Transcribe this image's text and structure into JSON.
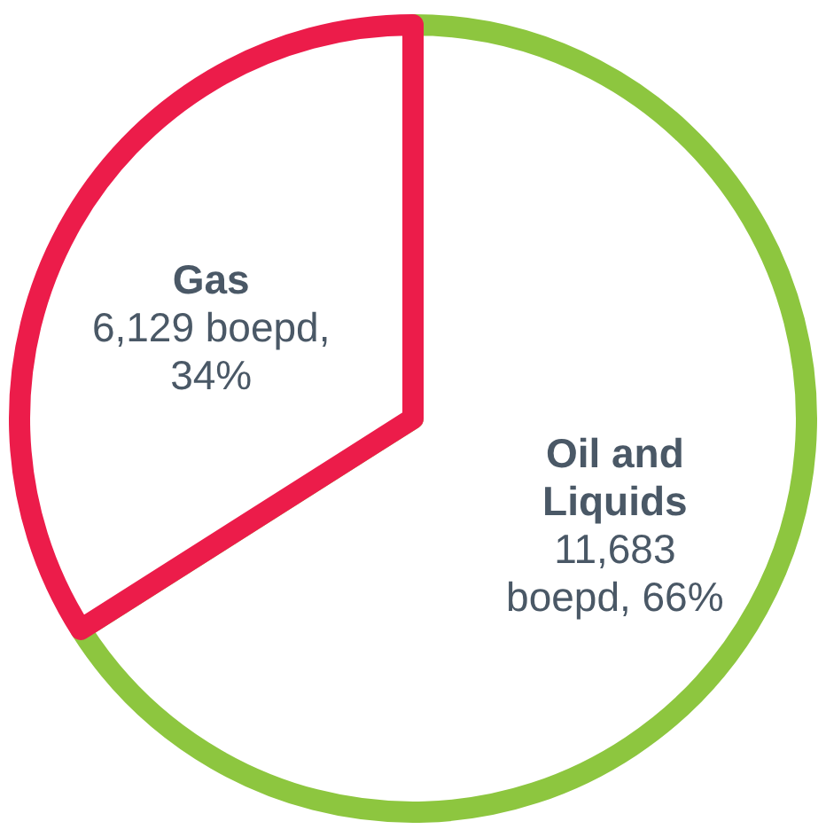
{
  "chart_data": {
    "type": "pie",
    "categories": [
      "Oil and Liquids",
      "Gas"
    ],
    "values": [
      66,
      34
    ],
    "colors": [
      "#8dc63f",
      "#ec1c4a"
    ],
    "value_labels": [
      "11,683 boepd, 66%",
      "6,129 boepd, 34%"
    ],
    "legend": false
  }
}
